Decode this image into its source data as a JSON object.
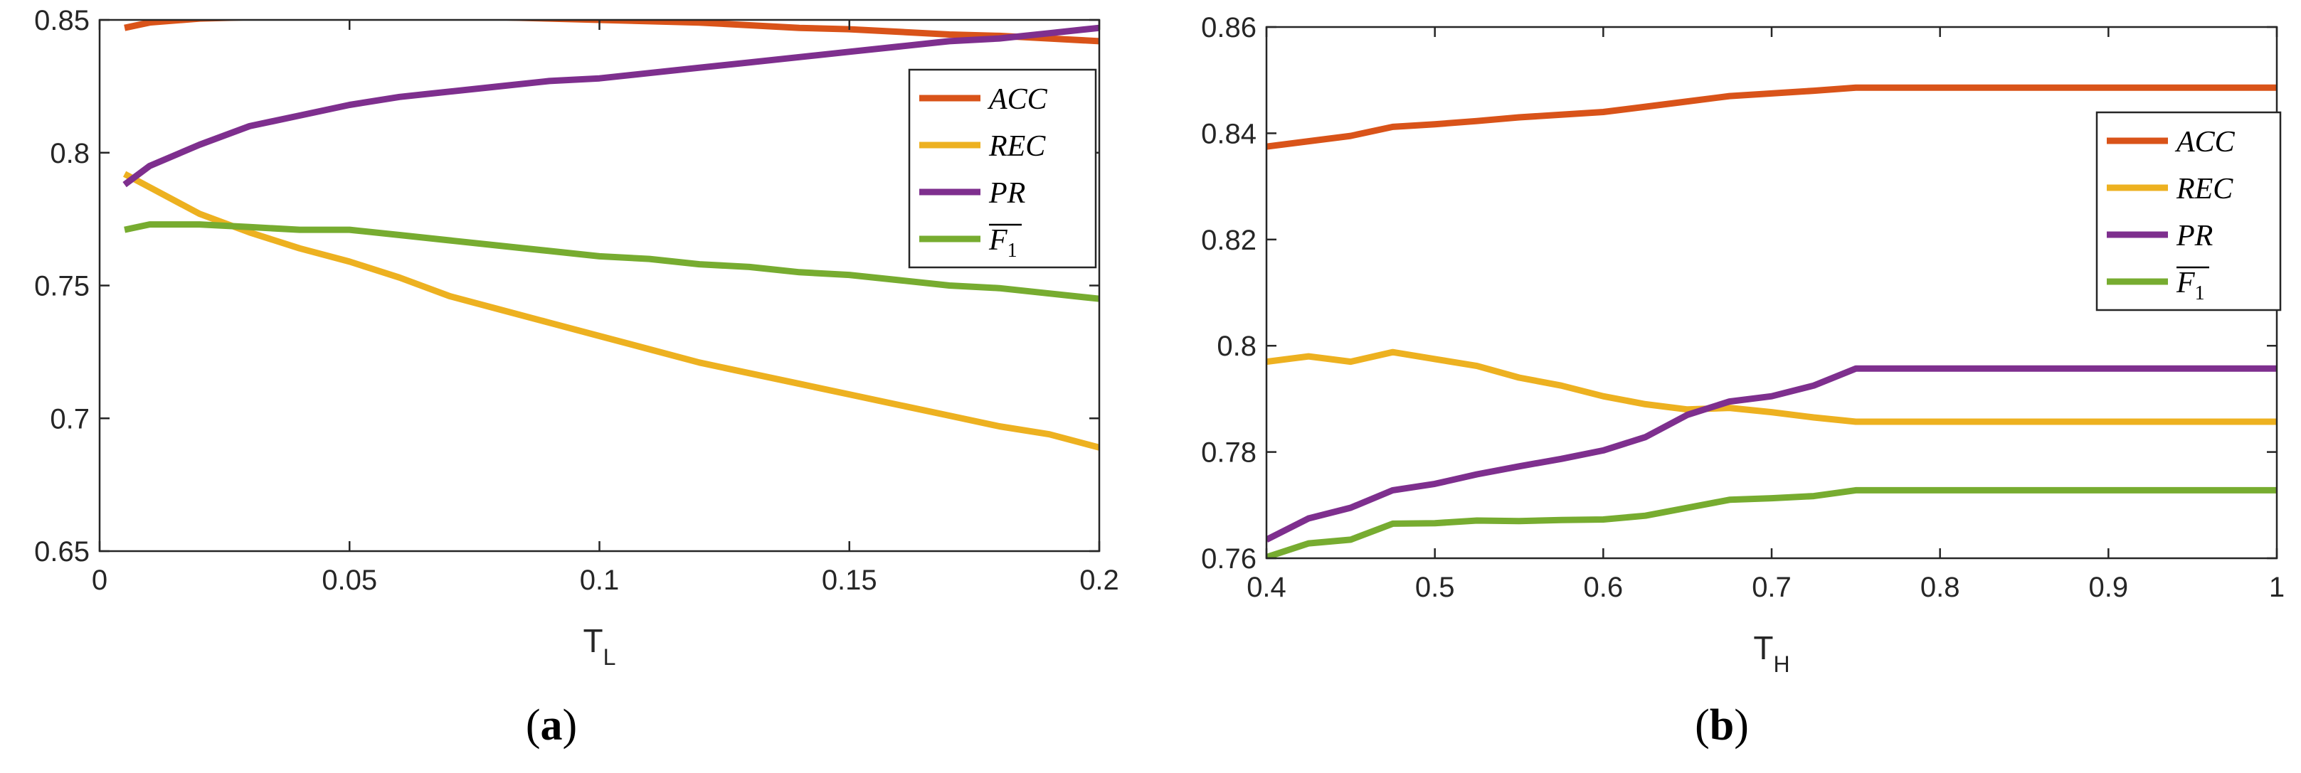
{
  "colors": {
    "ACC": "#D95319",
    "REC": "#EDB120",
    "PR": "#7E2F8E",
    "F1": "#77AC30",
    "axis": "#262626"
  },
  "chart_data": [
    {
      "id": "a",
      "type": "line",
      "caption": "a",
      "xlabel": "T",
      "xlabel_sub": "L",
      "ylabel": "",
      "xlim": [
        0,
        0.2
      ],
      "ylim": [
        0.65,
        0.85
      ],
      "xticks": [
        0,
        0.05,
        0.1,
        0.15,
        0.2
      ],
      "xtick_labels": [
        "0",
        "0.05",
        "0.1",
        "0.15",
        "0.2"
      ],
      "yticks": [
        0.65,
        0.7,
        0.75,
        0.8,
        0.85
      ],
      "ytick_labels": [
        "0.65",
        "0.7",
        "0.75",
        "0.8",
        "0.85"
      ],
      "legend_position": "top-right",
      "series": [
        {
          "key": "ACC",
          "name": "ACC",
          "sub": "",
          "x": [
            0.005,
            0.01,
            0.02,
            0.03,
            0.04,
            0.05,
            0.06,
            0.07,
            0.08,
            0.09,
            0.1,
            0.11,
            0.12,
            0.13,
            0.14,
            0.15,
            0.16,
            0.17,
            0.18,
            0.19,
            0.2
          ],
          "y": [
            0.847,
            0.849,
            0.8505,
            0.851,
            0.8515,
            0.8518,
            0.8518,
            0.8515,
            0.851,
            0.8505,
            0.85,
            0.8495,
            0.849,
            0.848,
            0.847,
            0.8465,
            0.8455,
            0.8445,
            0.844,
            0.843,
            0.842
          ]
        },
        {
          "key": "REC",
          "name": "REC",
          "sub": "",
          "x": [
            0.005,
            0.01,
            0.02,
            0.03,
            0.04,
            0.05,
            0.06,
            0.07,
            0.08,
            0.09,
            0.1,
            0.11,
            0.12,
            0.13,
            0.14,
            0.15,
            0.16,
            0.17,
            0.18,
            0.19,
            0.2
          ],
          "y": [
            0.792,
            0.787,
            0.777,
            0.77,
            0.764,
            0.759,
            0.753,
            0.746,
            0.741,
            0.736,
            0.731,
            0.726,
            0.721,
            0.717,
            0.713,
            0.709,
            0.705,
            0.701,
            0.697,
            0.694,
            0.689
          ]
        },
        {
          "key": "PR",
          "name": "PR",
          "sub": "",
          "x": [
            0.005,
            0.01,
            0.02,
            0.03,
            0.04,
            0.05,
            0.06,
            0.07,
            0.08,
            0.09,
            0.1,
            0.11,
            0.12,
            0.13,
            0.14,
            0.15,
            0.16,
            0.17,
            0.18,
            0.19,
            0.2
          ],
          "y": [
            0.788,
            0.795,
            0.803,
            0.81,
            0.814,
            0.818,
            0.821,
            0.823,
            0.825,
            0.827,
            0.828,
            0.83,
            0.832,
            0.834,
            0.836,
            0.838,
            0.84,
            0.842,
            0.843,
            0.845,
            0.847
          ]
        },
        {
          "key": "F1",
          "name": "F",
          "sub": "1",
          "x": [
            0.005,
            0.01,
            0.02,
            0.03,
            0.04,
            0.05,
            0.06,
            0.07,
            0.08,
            0.09,
            0.1,
            0.11,
            0.12,
            0.13,
            0.14,
            0.15,
            0.16,
            0.17,
            0.18,
            0.19,
            0.2
          ],
          "y": [
            0.771,
            0.773,
            0.773,
            0.772,
            0.771,
            0.771,
            0.769,
            0.767,
            0.765,
            0.763,
            0.761,
            0.76,
            0.758,
            0.757,
            0.755,
            0.754,
            0.752,
            0.75,
            0.749,
            0.747,
            0.745
          ]
        }
      ]
    },
    {
      "id": "b",
      "type": "line",
      "caption": "b",
      "xlabel": "T",
      "xlabel_sub": "H",
      "ylabel": "",
      "xlim": [
        0.4,
        1
      ],
      "ylim": [
        0.76,
        0.86
      ],
      "xticks": [
        0.4,
        0.5,
        0.6,
        0.7,
        0.8,
        0.9,
        1
      ],
      "xtick_labels": [
        "0.4",
        "0.5",
        "0.6",
        "0.7",
        "0.8",
        "0.9",
        "1"
      ],
      "yticks": [
        0.76,
        0.78,
        0.8,
        0.82,
        0.84,
        0.86
      ],
      "ytick_labels": [
        "0.76",
        "0.78",
        "0.8",
        "0.82",
        "0.84",
        "0.86"
      ],
      "legend_position": "right",
      "series": [
        {
          "key": "ACC",
          "name": "ACC",
          "sub": "",
          "x": [
            0.4,
            0.425,
            0.45,
            0.475,
            0.5,
            0.525,
            0.55,
            0.575,
            0.6,
            0.625,
            0.65,
            0.675,
            0.7,
            0.725,
            0.75,
            0.8,
            0.9,
            1
          ],
          "y": [
            0.8375,
            0.8385,
            0.8395,
            0.8412,
            0.8417,
            0.8423,
            0.843,
            0.8435,
            0.844,
            0.845,
            0.846,
            0.847,
            0.8475,
            0.848,
            0.8486,
            0.8486,
            0.8486,
            0.8486
          ]
        },
        {
          "key": "REC",
          "name": "REC",
          "sub": "",
          "x": [
            0.4,
            0.425,
            0.45,
            0.475,
            0.5,
            0.525,
            0.55,
            0.575,
            0.6,
            0.625,
            0.65,
            0.675,
            0.7,
            0.725,
            0.75,
            0.8,
            0.9,
            1
          ],
          "y": [
            0.797,
            0.798,
            0.797,
            0.7988,
            0.7975,
            0.7962,
            0.794,
            0.7925,
            0.7905,
            0.789,
            0.788,
            0.7883,
            0.7875,
            0.7865,
            0.7857,
            0.7857,
            0.7857,
            0.7857
          ]
        },
        {
          "key": "PR",
          "name": "PR",
          "sub": "",
          "x": [
            0.4,
            0.425,
            0.45,
            0.475,
            0.5,
            0.525,
            0.55,
            0.575,
            0.6,
            0.625,
            0.65,
            0.675,
            0.7,
            0.725,
            0.75,
            0.8,
            0.9,
            1
          ],
          "y": [
            0.7635,
            0.7675,
            0.7695,
            0.7728,
            0.774,
            0.7758,
            0.7773,
            0.7787,
            0.7803,
            0.7828,
            0.787,
            0.7895,
            0.7905,
            0.7925,
            0.7957,
            0.7957,
            0.7957,
            0.7957
          ]
        },
        {
          "key": "F1",
          "name": "F",
          "sub": "1",
          "x": [
            0.4,
            0.425,
            0.45,
            0.475,
            0.5,
            0.525,
            0.55,
            0.575,
            0.6,
            0.625,
            0.65,
            0.675,
            0.7,
            0.725,
            0.75,
            0.8,
            0.9,
            1
          ],
          "y": [
            0.7602,
            0.7628,
            0.7635,
            0.7665,
            0.7666,
            0.7671,
            0.767,
            0.7672,
            0.7673,
            0.768,
            0.7695,
            0.771,
            0.7713,
            0.7717,
            0.7728,
            0.7728,
            0.7728,
            0.7728
          ]
        }
      ]
    }
  ]
}
